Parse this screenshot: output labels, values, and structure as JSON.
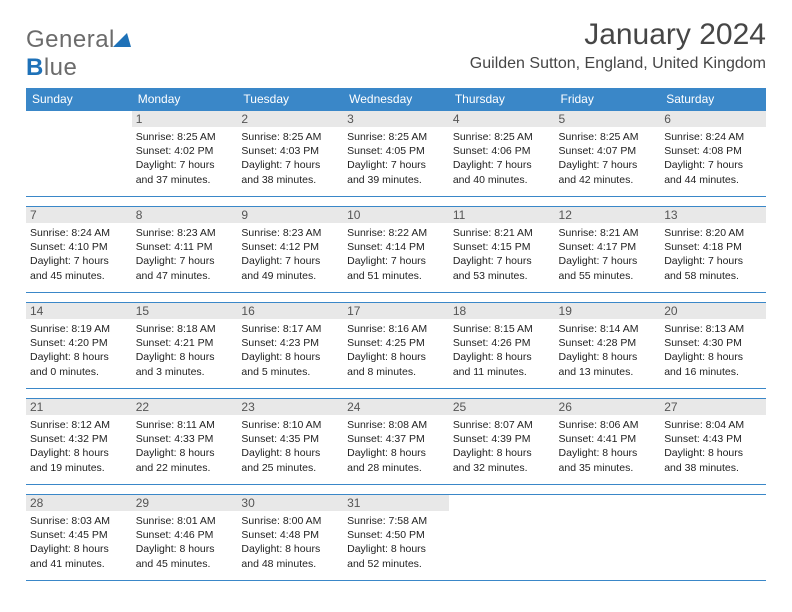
{
  "brand": {
    "name_gray": "General",
    "name_blue_char": "B",
    "name_blue_rest": "lue"
  },
  "header": {
    "month": "January 2024",
    "location": "Guilden Sutton, England, United Kingdom"
  },
  "colors": {
    "header_bg": "#3a87c8",
    "row_border": "#3a87c8",
    "daynum_bg": "#e8e8e8",
    "brand_gray": "#6b6b6b",
    "brand_blue": "#1e71b8"
  },
  "days": [
    "Sunday",
    "Monday",
    "Tuesday",
    "Wednesday",
    "Thursday",
    "Friday",
    "Saturday"
  ],
  "weeks": [
    [
      null,
      {
        "n": "1",
        "sr": "Sunrise: 8:25 AM",
        "ss": "Sunset: 4:02 PM",
        "dl1": "Daylight: 7 hours",
        "dl2": "and 37 minutes."
      },
      {
        "n": "2",
        "sr": "Sunrise: 8:25 AM",
        "ss": "Sunset: 4:03 PM",
        "dl1": "Daylight: 7 hours",
        "dl2": "and 38 minutes."
      },
      {
        "n": "3",
        "sr": "Sunrise: 8:25 AM",
        "ss": "Sunset: 4:05 PM",
        "dl1": "Daylight: 7 hours",
        "dl2": "and 39 minutes."
      },
      {
        "n": "4",
        "sr": "Sunrise: 8:25 AM",
        "ss": "Sunset: 4:06 PM",
        "dl1": "Daylight: 7 hours",
        "dl2": "and 40 minutes."
      },
      {
        "n": "5",
        "sr": "Sunrise: 8:25 AM",
        "ss": "Sunset: 4:07 PM",
        "dl1": "Daylight: 7 hours",
        "dl2": "and 42 minutes."
      },
      {
        "n": "6",
        "sr": "Sunrise: 8:24 AM",
        "ss": "Sunset: 4:08 PM",
        "dl1": "Daylight: 7 hours",
        "dl2": "and 44 minutes."
      }
    ],
    [
      {
        "n": "7",
        "sr": "Sunrise: 8:24 AM",
        "ss": "Sunset: 4:10 PM",
        "dl1": "Daylight: 7 hours",
        "dl2": "and 45 minutes."
      },
      {
        "n": "8",
        "sr": "Sunrise: 8:23 AM",
        "ss": "Sunset: 4:11 PM",
        "dl1": "Daylight: 7 hours",
        "dl2": "and 47 minutes."
      },
      {
        "n": "9",
        "sr": "Sunrise: 8:23 AM",
        "ss": "Sunset: 4:12 PM",
        "dl1": "Daylight: 7 hours",
        "dl2": "and 49 minutes."
      },
      {
        "n": "10",
        "sr": "Sunrise: 8:22 AM",
        "ss": "Sunset: 4:14 PM",
        "dl1": "Daylight: 7 hours",
        "dl2": "and 51 minutes."
      },
      {
        "n": "11",
        "sr": "Sunrise: 8:21 AM",
        "ss": "Sunset: 4:15 PM",
        "dl1": "Daylight: 7 hours",
        "dl2": "and 53 minutes."
      },
      {
        "n": "12",
        "sr": "Sunrise: 8:21 AM",
        "ss": "Sunset: 4:17 PM",
        "dl1": "Daylight: 7 hours",
        "dl2": "and 55 minutes."
      },
      {
        "n": "13",
        "sr": "Sunrise: 8:20 AM",
        "ss": "Sunset: 4:18 PM",
        "dl1": "Daylight: 7 hours",
        "dl2": "and 58 minutes."
      }
    ],
    [
      {
        "n": "14",
        "sr": "Sunrise: 8:19 AM",
        "ss": "Sunset: 4:20 PM",
        "dl1": "Daylight: 8 hours",
        "dl2": "and 0 minutes."
      },
      {
        "n": "15",
        "sr": "Sunrise: 8:18 AM",
        "ss": "Sunset: 4:21 PM",
        "dl1": "Daylight: 8 hours",
        "dl2": "and 3 minutes."
      },
      {
        "n": "16",
        "sr": "Sunrise: 8:17 AM",
        "ss": "Sunset: 4:23 PM",
        "dl1": "Daylight: 8 hours",
        "dl2": "and 5 minutes."
      },
      {
        "n": "17",
        "sr": "Sunrise: 8:16 AM",
        "ss": "Sunset: 4:25 PM",
        "dl1": "Daylight: 8 hours",
        "dl2": "and 8 minutes."
      },
      {
        "n": "18",
        "sr": "Sunrise: 8:15 AM",
        "ss": "Sunset: 4:26 PM",
        "dl1": "Daylight: 8 hours",
        "dl2": "and 11 minutes."
      },
      {
        "n": "19",
        "sr": "Sunrise: 8:14 AM",
        "ss": "Sunset: 4:28 PM",
        "dl1": "Daylight: 8 hours",
        "dl2": "and 13 minutes."
      },
      {
        "n": "20",
        "sr": "Sunrise: 8:13 AM",
        "ss": "Sunset: 4:30 PM",
        "dl1": "Daylight: 8 hours",
        "dl2": "and 16 minutes."
      }
    ],
    [
      {
        "n": "21",
        "sr": "Sunrise: 8:12 AM",
        "ss": "Sunset: 4:32 PM",
        "dl1": "Daylight: 8 hours",
        "dl2": "and 19 minutes."
      },
      {
        "n": "22",
        "sr": "Sunrise: 8:11 AM",
        "ss": "Sunset: 4:33 PM",
        "dl1": "Daylight: 8 hours",
        "dl2": "and 22 minutes."
      },
      {
        "n": "23",
        "sr": "Sunrise: 8:10 AM",
        "ss": "Sunset: 4:35 PM",
        "dl1": "Daylight: 8 hours",
        "dl2": "and 25 minutes."
      },
      {
        "n": "24",
        "sr": "Sunrise: 8:08 AM",
        "ss": "Sunset: 4:37 PM",
        "dl1": "Daylight: 8 hours",
        "dl2": "and 28 minutes."
      },
      {
        "n": "25",
        "sr": "Sunrise: 8:07 AM",
        "ss": "Sunset: 4:39 PM",
        "dl1": "Daylight: 8 hours",
        "dl2": "and 32 minutes."
      },
      {
        "n": "26",
        "sr": "Sunrise: 8:06 AM",
        "ss": "Sunset: 4:41 PM",
        "dl1": "Daylight: 8 hours",
        "dl2": "and 35 minutes."
      },
      {
        "n": "27",
        "sr": "Sunrise: 8:04 AM",
        "ss": "Sunset: 4:43 PM",
        "dl1": "Daylight: 8 hours",
        "dl2": "and 38 minutes."
      }
    ],
    [
      {
        "n": "28",
        "sr": "Sunrise: 8:03 AM",
        "ss": "Sunset: 4:45 PM",
        "dl1": "Daylight: 8 hours",
        "dl2": "and 41 minutes."
      },
      {
        "n": "29",
        "sr": "Sunrise: 8:01 AM",
        "ss": "Sunset: 4:46 PM",
        "dl1": "Daylight: 8 hours",
        "dl2": "and 45 minutes."
      },
      {
        "n": "30",
        "sr": "Sunrise: 8:00 AM",
        "ss": "Sunset: 4:48 PM",
        "dl1": "Daylight: 8 hours",
        "dl2": "and 48 minutes."
      },
      {
        "n": "31",
        "sr": "Sunrise: 7:58 AM",
        "ss": "Sunset: 4:50 PM",
        "dl1": "Daylight: 8 hours",
        "dl2": "and 52 minutes."
      },
      null,
      null,
      null
    ]
  ]
}
